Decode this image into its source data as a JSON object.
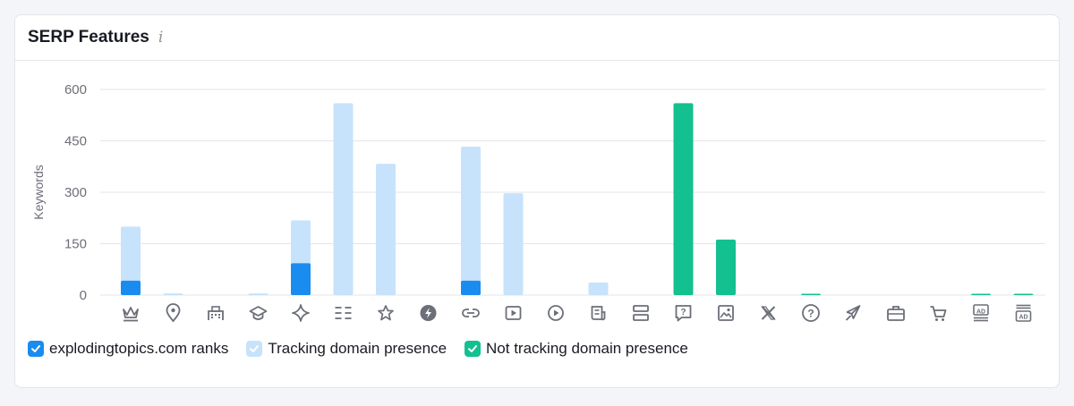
{
  "header": {
    "title": "SERP Features",
    "info_icon": "info-icon"
  },
  "colors": {
    "ranks": "#1a8cf0",
    "tracking": "#c7e3fb",
    "not_tracking": "#13c08f",
    "grid": "#e3e5ea",
    "tick_text": "#6c6f78",
    "icon": "#6c6f78"
  },
  "legend": [
    {
      "label": "explodingtopics.com ranks",
      "color": "#1a8cf0",
      "check_color": "#ffffff",
      "checked": true
    },
    {
      "label": "Tracking domain presence",
      "color": "#c7e3fb",
      "check_color": "#ffffff",
      "checked": true
    },
    {
      "label": "Not tracking domain presence",
      "color": "#13c08f",
      "check_color": "#ffffff",
      "checked": true
    }
  ],
  "chart_data": {
    "type": "bar",
    "ylabel": "Keywords",
    "ylim": [
      0,
      600
    ],
    "yticks": [
      0,
      150,
      300,
      450,
      600
    ],
    "grid": true,
    "legend_position": "bottom-left",
    "categories": [
      "featured-snippet",
      "local-pack",
      "hotels",
      "knowledge-panel",
      "ai-overview",
      "sitelinks",
      "reviews",
      "amp",
      "related-links",
      "video",
      "video-carousel",
      "top-stories",
      "people-also-ask-list",
      "people-also-ask",
      "image-pack",
      "x-twitter",
      "faq",
      "flights",
      "jobs",
      "shopping",
      "top-ads",
      "bottom-ads"
    ],
    "series": [
      {
        "name": "explodingtopics.com ranks",
        "values": [
          42,
          0,
          0,
          0,
          93,
          0,
          0,
          0,
          42,
          0,
          0,
          0,
          0,
          0,
          0,
          0,
          0,
          0,
          0,
          0,
          0,
          0
        ]
      },
      {
        "name": "Tracking domain presence",
        "values": [
          200,
          5,
          0,
          5,
          218,
          560,
          383,
          0,
          433,
          297,
          0,
          37,
          0,
          0,
          0,
          0,
          0,
          0,
          0,
          0,
          0,
          0
        ]
      },
      {
        "name": "Not tracking domain presence",
        "values": [
          0,
          0,
          0,
          0,
          0,
          0,
          0,
          0,
          0,
          0,
          0,
          0,
          0,
          560,
          162,
          0,
          4,
          0,
          0,
          0,
          4,
          4
        ]
      }
    ]
  }
}
